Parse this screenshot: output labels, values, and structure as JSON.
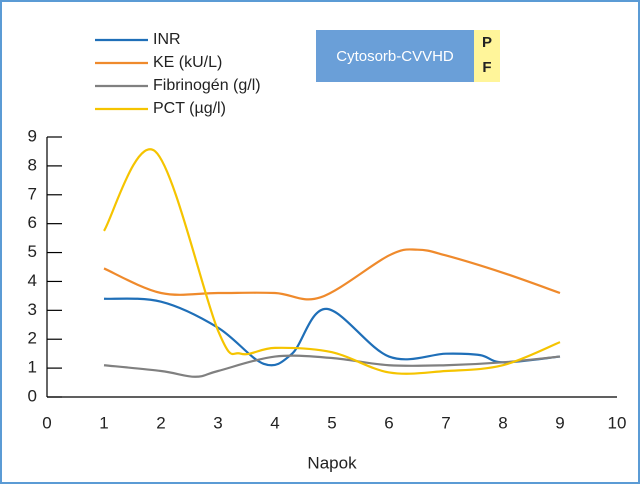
{
  "chart_data": {
    "type": "line",
    "x_label": "Napok",
    "xlim": [
      0,
      10
    ],
    "xticks": [
      0,
      1,
      2,
      3,
      4,
      5,
      6,
      7,
      8,
      9,
      10
    ],
    "ylim": [
      0,
      9
    ],
    "yticks": [
      0,
      1,
      2,
      3,
      4,
      5,
      6,
      7,
      8,
      9
    ],
    "legend": "upper left",
    "series": [
      {
        "name": "INR",
        "color": "#1f6fb8",
        "x": [
          1,
          2,
          3,
          3.8,
          4.3,
          4.9,
          6,
          7,
          7.6,
          8,
          9
        ],
        "values": [
          3.4,
          3.3,
          2.4,
          1.15,
          1.5,
          3.05,
          1.4,
          1.5,
          1.45,
          1.2,
          1.4
        ]
      },
      {
        "name": "KE (kU/L)",
        "color": "#ef8a2c",
        "x": [
          1,
          2,
          3,
          4,
          4.8,
          6,
          6.5,
          7,
          8,
          9
        ],
        "values": [
          4.45,
          3.6,
          3.6,
          3.6,
          3.45,
          4.9,
          5.1,
          4.9,
          4.3,
          3.6
        ]
      },
      {
        "name": "Fibrinogén (g/l)",
        "color": "#808080",
        "x": [
          1,
          2,
          2.6,
          3,
          4,
          5,
          6,
          7,
          8,
          9
        ],
        "values": [
          1.1,
          0.9,
          0.7,
          0.9,
          1.4,
          1.35,
          1.1,
          1.1,
          1.2,
          1.4
        ]
      },
      {
        "name": "PCT (µg/l)",
        "color": "#f5c400",
        "x": [
          1,
          1.9,
          3,
          3.4,
          4,
          5,
          6,
          7,
          8,
          9
        ],
        "values": [
          5.75,
          8.5,
          2.3,
          1.5,
          1.7,
          1.55,
          0.85,
          0.9,
          1.1,
          1.9
        ]
      }
    ],
    "annotations": [
      "Cytosorb-CVVHD",
      "P",
      "F"
    ]
  }
}
